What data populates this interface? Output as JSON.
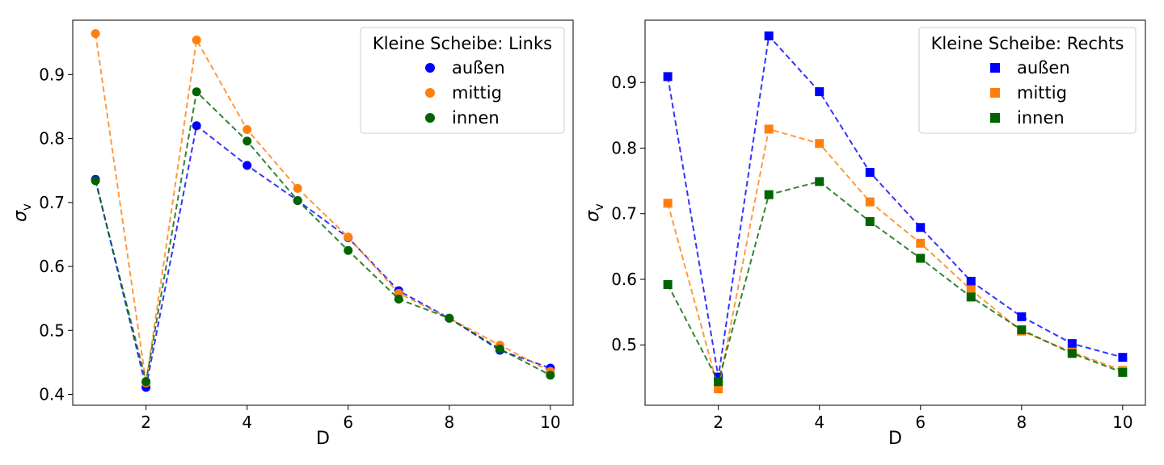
{
  "chart_data": [
    {
      "type": "line",
      "marker": "circle",
      "line_style": "dashed",
      "xlabel": "D",
      "ylabel": "σ",
      "ylabel_subscript": "v",
      "xlim": [
        0.55,
        10.45
      ],
      "ylim": [
        0.383,
        0.985
      ],
      "xticks": [
        2,
        4,
        6,
        8,
        10
      ],
      "yticks": [
        0.4,
        0.5,
        0.6,
        0.7,
        0.8,
        0.9
      ],
      "grid": false,
      "legend_title": "Kleine Scheibe: Links",
      "legend_position": "top-right",
      "x": [
        1,
        2,
        3,
        4,
        5,
        6,
        7,
        8,
        9,
        10
      ],
      "series": [
        {
          "name": "außen",
          "color": "#0000ff",
          "values": [
            0.736,
            0.411,
            0.82,
            0.758,
            0.703,
            0.645,
            0.562,
            0.519,
            0.469,
            0.441
          ]
        },
        {
          "name": "mittig",
          "color": "#ff7f0e",
          "values": [
            0.964,
            0.418,
            0.954,
            0.814,
            0.722,
            0.646,
            0.558,
            0.519,
            0.477,
            0.436
          ]
        },
        {
          "name": "innen",
          "color": "#006400",
          "values": [
            0.734,
            0.42,
            0.873,
            0.796,
            0.703,
            0.625,
            0.549,
            0.519,
            0.471,
            0.43
          ]
        }
      ]
    },
    {
      "type": "line",
      "marker": "square",
      "line_style": "dashed",
      "xlabel": "D",
      "ylabel": "σ",
      "ylabel_subscript": "v",
      "xlim": [
        0.55,
        10.45
      ],
      "ylim": [
        0.408,
        0.995
      ],
      "xticks": [
        2,
        4,
        6,
        8,
        10
      ],
      "yticks": [
        0.5,
        0.6,
        0.7,
        0.8,
        0.9
      ],
      "grid": false,
      "legend_title": "Kleine Scheibe: Rechts",
      "legend_position": "top-right",
      "x": [
        1,
        2,
        3,
        4,
        5,
        6,
        7,
        8,
        9,
        10
      ],
      "series": [
        {
          "name": "außen",
          "color": "#0000ff",
          "values": [
            0.909,
            0.451,
            0.971,
            0.886,
            0.763,
            0.679,
            0.597,
            0.543,
            0.502,
            0.481
          ]
        },
        {
          "name": "mittig",
          "color": "#ff7f0e",
          "values": [
            0.716,
            0.433,
            0.829,
            0.807,
            0.718,
            0.655,
            0.584,
            0.521,
            0.489,
            0.461
          ]
        },
        {
          "name": "innen",
          "color": "#006400",
          "values": [
            0.592,
            0.444,
            0.729,
            0.749,
            0.688,
            0.632,
            0.573,
            0.523,
            0.487,
            0.458
          ]
        }
      ]
    }
  ]
}
